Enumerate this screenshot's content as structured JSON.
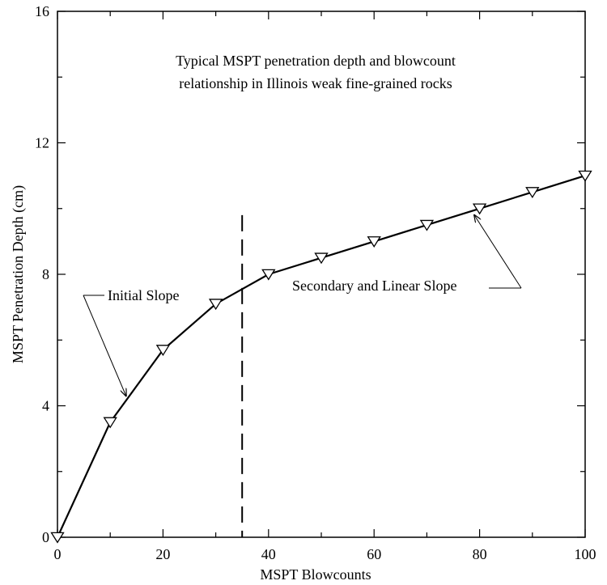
{
  "chart_data": {
    "type": "line",
    "title_lines": [
      "Typical MSPT penetration depth and blowcount",
      "relationship in Illinois weak fine-grained rocks"
    ],
    "xlabel": "MSPT Blowcounts",
    "ylabel": "MSPT Penetration Depth (cm)",
    "xlim": [
      0,
      100
    ],
    "ylim": [
      0,
      16
    ],
    "x_ticks": [
      0,
      20,
      40,
      60,
      80,
      100
    ],
    "y_ticks": [
      0,
      4,
      8,
      12,
      16
    ],
    "x": [
      0,
      10,
      20,
      30,
      40,
      50,
      60,
      70,
      80,
      90,
      100
    ],
    "y": [
      0,
      3.5,
      5.7,
      7.1,
      8.0,
      8.5,
      9.0,
      9.5,
      10.0,
      10.5,
      11.0
    ],
    "marker": "inverted-triangle",
    "line_color": "#000000",
    "grid": false,
    "vertical_reference": {
      "x": 35,
      "y_range": [
        0,
        9.8
      ],
      "style": "dashed"
    },
    "annotations": [
      {
        "text": "Initial Slope",
        "arrow_to": [
          13,
          4.3
        ]
      },
      {
        "text": "Secondary and Linear Slope",
        "arrow_to": [
          79,
          9.8
        ]
      }
    ]
  }
}
